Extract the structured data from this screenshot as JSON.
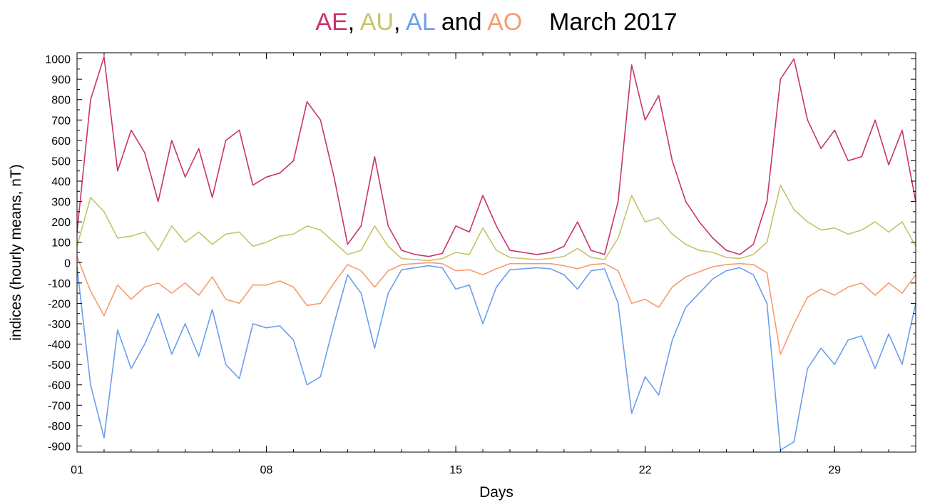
{
  "chart_data": {
    "type": "line",
    "title_parts": [
      {
        "text": "AE",
        "color": "#c8336b"
      },
      {
        "text": ", ",
        "color": "#000000"
      },
      {
        "text": "AU",
        "color": "#c5c46a"
      },
      {
        "text": ", ",
        "color": "#000000"
      },
      {
        "text": "AL",
        "color": "#6a9ef0"
      },
      {
        "text": " and ",
        "color": "#000000"
      },
      {
        "text": "AO",
        "color": "#f59c6e"
      },
      {
        "text": "    March 2017",
        "color": "#000000"
      }
    ],
    "xlabel": "Days",
    "ylabel": "indices (hourly means, nT)",
    "xlim": [
      1,
      32
    ],
    "ylim": [
      -930,
      1030
    ],
    "x_ticks": [
      {
        "value": 1,
        "label": "01"
      },
      {
        "value": 8,
        "label": "08"
      },
      {
        "value": 15,
        "label": "15"
      },
      {
        "value": 22,
        "label": "22"
      },
      {
        "value": 29,
        "label": "29"
      }
    ],
    "y_ticks": [
      1000,
      900,
      800,
      700,
      600,
      500,
      400,
      300,
      200,
      100,
      0,
      -100,
      -200,
      -300,
      -400,
      -500,
      -600,
      -700,
      -800,
      -900
    ],
    "grid": false,
    "x_day_values": [
      1,
      1.5,
      2,
      2.5,
      3,
      3.5,
      4,
      4.5,
      5,
      5.5,
      6,
      6.5,
      7,
      7.5,
      8,
      8.5,
      9,
      9.5,
      10,
      10.5,
      11,
      11.5,
      12,
      12.5,
      13,
      13.5,
      14,
      14.5,
      15,
      15.5,
      16,
      16.5,
      17,
      17.5,
      18,
      18.5,
      19,
      19.5,
      20,
      20.5,
      21,
      21.5,
      22,
      22.5,
      23,
      23.5,
      24,
      24.5,
      25,
      25.5,
      26,
      26.5,
      27,
      27.5,
      28,
      28.5,
      29,
      29.5,
      30,
      30.5,
      31,
      31.5,
      32
    ],
    "series": [
      {
        "name": "AE",
        "color": "#c8336b",
        "values": [
          150,
          800,
          1010,
          450,
          650,
          540,
          300,
          600,
          420,
          560,
          320,
          600,
          650,
          380,
          420,
          440,
          500,
          790,
          700,
          420,
          90,
          180,
          520,
          180,
          60,
          40,
          30,
          45,
          180,
          150,
          330,
          180,
          60,
          50,
          40,
          50,
          80,
          200,
          60,
          40,
          300,
          970,
          700,
          820,
          500,
          300,
          200,
          120,
          60,
          40,
          90,
          300,
          900,
          1000,
          700,
          560,
          650,
          500,
          520,
          700,
          480,
          650,
          300
        ]
      },
      {
        "name": "AU",
        "color": "#c5c46a",
        "values": [
          80,
          320,
          250,
          120,
          130,
          150,
          60,
          180,
          100,
          150,
          90,
          140,
          150,
          80,
          100,
          130,
          140,
          180,
          160,
          100,
          40,
          60,
          180,
          80,
          20,
          15,
          10,
          20,
          50,
          40,
          170,
          60,
          25,
          20,
          15,
          20,
          30,
          70,
          25,
          15,
          120,
          330,
          200,
          220,
          140,
          90,
          60,
          50,
          25,
          20,
          40,
          100,
          380,
          260,
          200,
          160,
          170,
          140,
          160,
          200,
          150,
          200,
          80
        ]
      },
      {
        "name": "AL",
        "color": "#6a9ef0",
        "values": [
          -20,
          -600,
          -860,
          -330,
          -520,
          -400,
          -250,
          -450,
          -300,
          -460,
          -230,
          -500,
          -570,
          -300,
          -320,
          -310,
          -380,
          -600,
          -560,
          -300,
          -60,
          -150,
          -420,
          -150,
          -35,
          -25,
          -15,
          -25,
          -130,
          -110,
          -300,
          -120,
          -35,
          -30,
          -25,
          -30,
          -60,
          -130,
          -40,
          -30,
          -200,
          -740,
          -560,
          -650,
          -380,
          -220,
          -150,
          -80,
          -40,
          -25,
          -60,
          -200,
          -920,
          -880,
          -520,
          -420,
          -500,
          -380,
          -360,
          -520,
          -350,
          -500,
          -200
        ]
      },
      {
        "name": "AO",
        "color": "#f59c6e",
        "values": [
          30,
          -140,
          -260,
          -110,
          -180,
          -120,
          -100,
          -150,
          -100,
          -160,
          -70,
          -180,
          -200,
          -110,
          -110,
          -90,
          -120,
          -210,
          -200,
          -100,
          -10,
          -40,
          -120,
          -40,
          -10,
          -5,
          0,
          -5,
          -40,
          -35,
          -60,
          -30,
          -5,
          -5,
          -5,
          -5,
          -15,
          -30,
          -10,
          -5,
          -40,
          -200,
          -180,
          -220,
          -120,
          -70,
          -45,
          -20,
          -10,
          -5,
          -10,
          -50,
          -450,
          -300,
          -170,
          -130,
          -160,
          -120,
          -100,
          -160,
          -100,
          -150,
          -60
        ]
      }
    ]
  }
}
